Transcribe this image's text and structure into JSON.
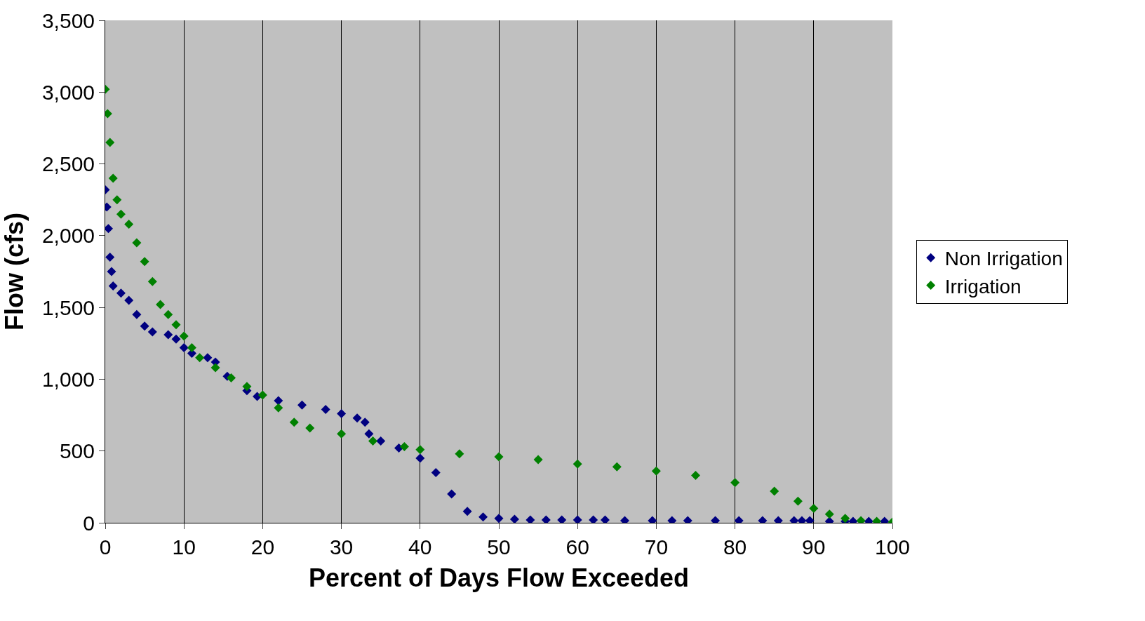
{
  "chart_data": {
    "type": "scatter",
    "xlabel": "Percent of Days Flow Exceeded",
    "ylabel": "Flow (cfs)",
    "xlim": [
      0,
      100
    ],
    "xticks": [
      0,
      10,
      20,
      30,
      40,
      50,
      60,
      70,
      80,
      90,
      100
    ],
    "ylim": [
      0,
      3500
    ],
    "yticks": [
      0,
      {
        "value": 500,
        "label": "500"
      },
      {
        "value": 1000,
        "label": "1,000"
      },
      {
        "value": 1500,
        "label": "1,500"
      },
      {
        "value": 2000,
        "label": "2,000"
      },
      {
        "value": 2500,
        "label": "2,500"
      },
      {
        "value": 3000,
        "label": "3,000"
      },
      {
        "value": 3500,
        "label": "3,500"
      }
    ],
    "grid": "x",
    "legend": "right",
    "marker": "diamond",
    "series": [
      {
        "name": "Non Irrigation",
        "color": "#000080",
        "x": [
          0,
          0.2,
          0.4,
          0.6,
          0.8,
          1,
          2,
          3,
          4,
          5,
          6,
          8,
          9,
          10,
          11,
          13,
          14,
          15.5,
          18,
          19.3,
          22,
          25,
          28,
          30,
          32,
          33,
          33.5,
          35,
          37.3,
          40,
          42,
          44,
          46,
          48,
          50,
          52,
          54,
          56,
          58,
          60,
          62,
          63.5,
          66,
          69.5,
          72,
          74,
          77.5,
          80.5,
          83.5,
          85.5,
          87.5,
          88.5,
          89.5,
          92,
          94,
          95,
          97,
          99
        ],
        "values": [
          2320,
          2200,
          2050,
          1850,
          1750,
          1650,
          1600,
          1550,
          1450,
          1370,
          1330,
          1310,
          1280,
          1220,
          1180,
          1150,
          1120,
          1020,
          920,
          880,
          850,
          820,
          790,
          760,
          730,
          700,
          620,
          570,
          520,
          450,
          350,
          200,
          80,
          40,
          30,
          25,
          20,
          20,
          20,
          20,
          20,
          20,
          15,
          15,
          15,
          15,
          15,
          15,
          15,
          15,
          15,
          15,
          15,
          10,
          10,
          10,
          10,
          10
        ]
      },
      {
        "name": "Irrigation",
        "color": "#008000",
        "x": [
          0,
          0.3,
          0.6,
          1,
          1.5,
          2,
          3,
          4,
          5,
          6,
          7,
          8,
          9,
          10,
          11,
          12,
          14,
          16,
          18,
          20,
          22,
          24,
          26,
          30,
          34,
          38,
          40,
          45,
          50,
          55,
          60,
          65,
          70,
          75,
          80,
          85,
          88,
          90,
          92,
          94,
          96,
          98,
          100
        ],
        "values": [
          3020,
          2850,
          2650,
          2400,
          2250,
          2150,
          2080,
          1950,
          1820,
          1680,
          1520,
          1450,
          1380,
          1300,
          1220,
          1150,
          1080,
          1010,
          950,
          890,
          800,
          700,
          660,
          620,
          570,
          530,
          510,
          480,
          460,
          440,
          410,
          390,
          360,
          330,
          280,
          220,
          150,
          100,
          60,
          30,
          15,
          10,
          5
        ]
      }
    ]
  }
}
